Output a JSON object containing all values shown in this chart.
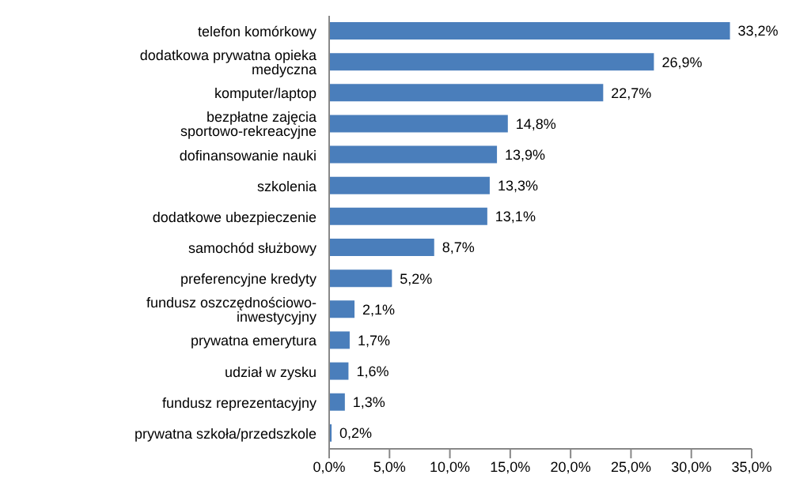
{
  "chart_data": {
    "type": "bar",
    "orientation": "horizontal",
    "categories": [
      "telefon komórkowy",
      "dodatkowa prywatna opieka medyczna",
      "komputer/laptop",
      "bezpłatne zajęcia sportowo-rekreacyjne",
      "dofinansowanie nauki",
      "szkolenia",
      "dodatkowe ubezpieczenie",
      "samochód służbowy",
      "preferencyjne kredyty",
      "fundusz oszczędnościowo- inwestycyjny",
      "prywatna emerytura",
      "udział w zysku",
      "fundusz reprezentacyjny",
      "prywatna szkoła/przedszkole"
    ],
    "values": [
      33.2,
      26.9,
      22.7,
      14.8,
      13.9,
      13.3,
      13.1,
      8.7,
      5.2,
      2.1,
      1.7,
      1.6,
      1.3,
      0.2
    ],
    "value_labels": [
      "33,2%",
      "26,9%",
      "22,7%",
      "14,8%",
      "13,9%",
      "13,3%",
      "13,1%",
      "8,7%",
      "5,2%",
      "2,1%",
      "1,7%",
      "1,6%",
      "1,3%",
      "0,2%"
    ],
    "color": "#4a7ebb",
    "xlim": [
      0,
      35
    ],
    "xticks": [
      {
        "value": 0,
        "label": "0,0%"
      },
      {
        "value": 5,
        "label": "5,0%"
      },
      {
        "value": 10,
        "label": "10,0%"
      },
      {
        "value": 15,
        "label": "15,0%"
      },
      {
        "value": 20,
        "label": "20,0%"
      },
      {
        "value": 25,
        "label": "25,0%"
      },
      {
        "value": 30,
        "label": "30,0%"
      },
      {
        "value": 35,
        "label": "35,0%"
      }
    ],
    "grid": false,
    "legend": false
  }
}
